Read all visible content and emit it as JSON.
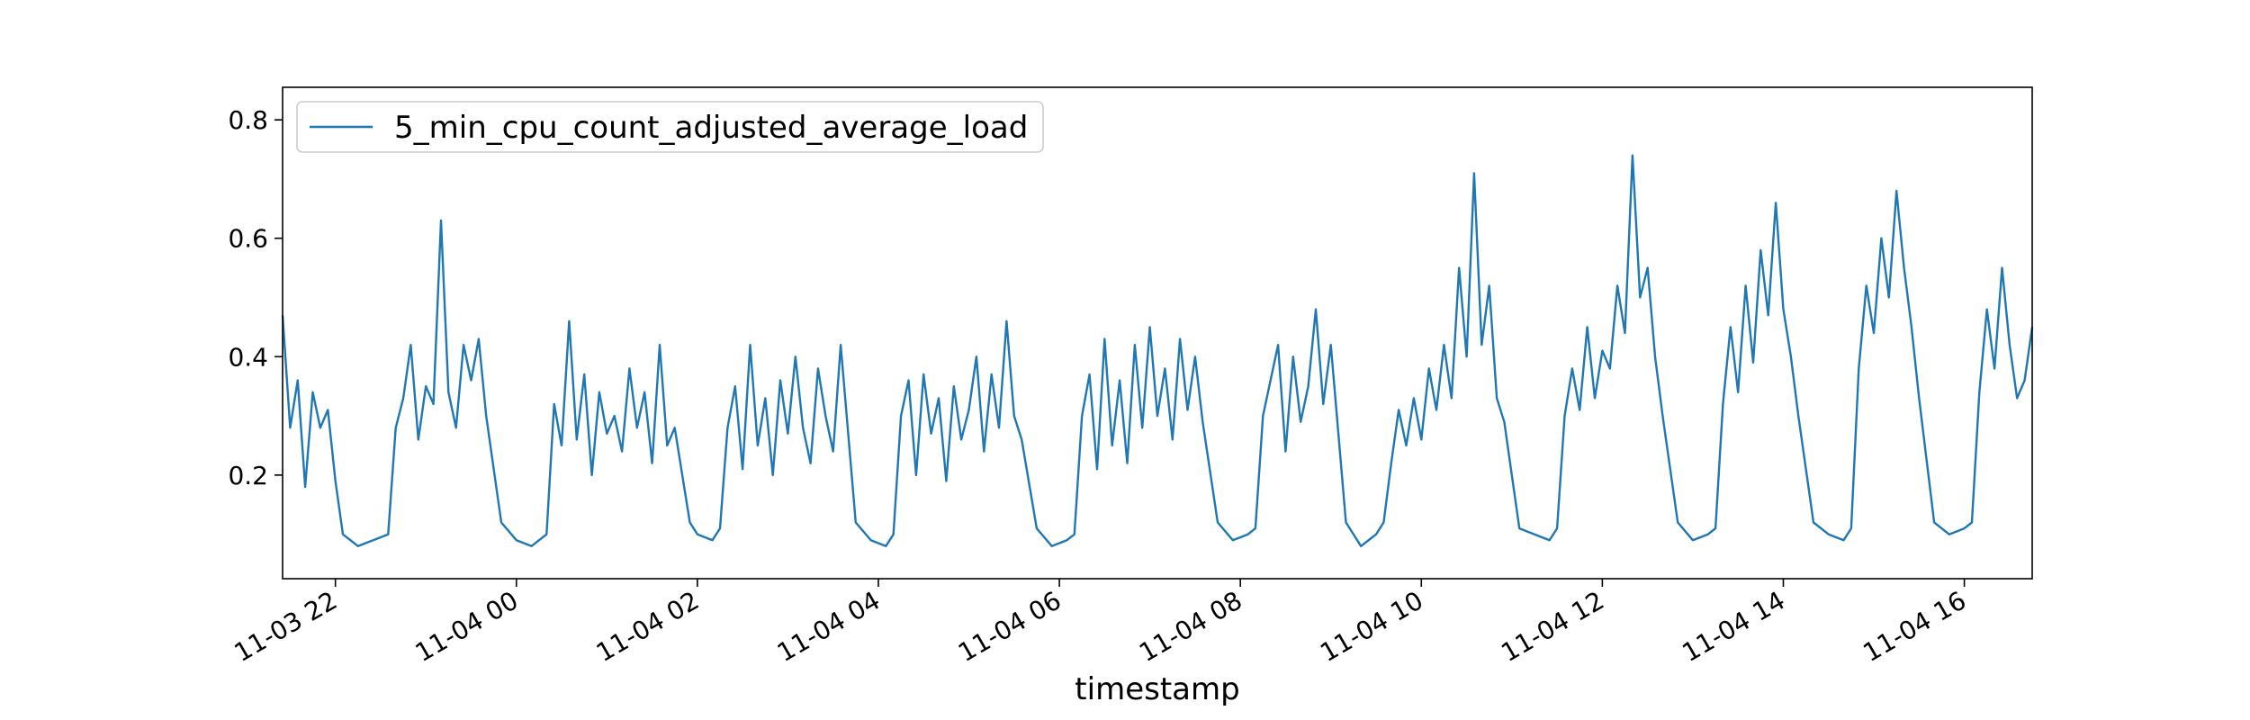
{
  "chart_data": {
    "type": "line",
    "title": "",
    "xlabel": "timestamp",
    "ylabel": "",
    "x_range": [
      "11-03 21:25",
      "11-04 16:45"
    ],
    "ylim": [
      0.025,
      0.855
    ],
    "yticks": [
      {
        "value": 0.2,
        "label": "0.2"
      },
      {
        "value": 0.4,
        "label": "0.4"
      },
      {
        "value": 0.6,
        "label": "0.6"
      },
      {
        "value": 0.8,
        "label": "0.8"
      }
    ],
    "xticks": [
      {
        "value": "11-03 22:00",
        "label": "11-03 22"
      },
      {
        "value": "11-04 00:00",
        "label": "11-04 00"
      },
      {
        "value": "11-04 02:00",
        "label": "11-04 02"
      },
      {
        "value": "11-04 04:00",
        "label": "11-04 04"
      },
      {
        "value": "11-04 06:00",
        "label": "11-04 06"
      },
      {
        "value": "11-04 08:00",
        "label": "11-04 08"
      },
      {
        "value": "11-04 10:00",
        "label": "11-04 10"
      },
      {
        "value": "11-04 12:00",
        "label": "11-04 12"
      },
      {
        "value": "11-04 14:00",
        "label": "11-04 14"
      },
      {
        "value": "11-04 16:00",
        "label": "11-04 16"
      }
    ],
    "grid": false,
    "legend": {
      "position": "top-left"
    },
    "series": [
      {
        "name": "5_min_cpu_count_adjusted_average_load",
        "color": "#1f77b4",
        "points": [
          [
            "11-03 21:25",
            0.47
          ],
          [
            "11-03 21:30",
            0.28
          ],
          [
            "11-03 21:35",
            0.36
          ],
          [
            "11-03 21:40",
            0.18
          ],
          [
            "11-03 21:45",
            0.34
          ],
          [
            "11-03 21:50",
            0.28
          ],
          [
            "11-03 21:55",
            0.31
          ],
          [
            "11-03 22:00",
            0.19
          ],
          [
            "11-03 22:05",
            0.1
          ],
          [
            "11-03 22:15",
            0.08
          ],
          [
            "11-03 22:25",
            0.09
          ],
          [
            "11-03 22:35",
            0.1
          ],
          [
            "11-03 22:40",
            0.28
          ],
          [
            "11-03 22:45",
            0.33
          ],
          [
            "11-03 22:50",
            0.42
          ],
          [
            "11-03 22:55",
            0.26
          ],
          [
            "11-03 23:00",
            0.35
          ],
          [
            "11-03 23:05",
            0.32
          ],
          [
            "11-03 23:10",
            0.63
          ],
          [
            "11-03 23:15",
            0.34
          ],
          [
            "11-03 23:20",
            0.28
          ],
          [
            "11-03 23:25",
            0.42
          ],
          [
            "11-03 23:30",
            0.36
          ],
          [
            "11-03 23:35",
            0.43
          ],
          [
            "11-03 23:40",
            0.3
          ],
          [
            "11-03 23:50",
            0.12
          ],
          [
            "11-04 00:00",
            0.09
          ],
          [
            "11-04 00:10",
            0.08
          ],
          [
            "11-04 00:20",
            0.1
          ],
          [
            "11-04 00:25",
            0.32
          ],
          [
            "11-04 00:30",
            0.25
          ],
          [
            "11-04 00:35",
            0.46
          ],
          [
            "11-04 00:40",
            0.26
          ],
          [
            "11-04 00:45",
            0.37
          ],
          [
            "11-04 00:50",
            0.2
          ],
          [
            "11-04 00:55",
            0.34
          ],
          [
            "11-04 01:00",
            0.27
          ],
          [
            "11-04 01:05",
            0.3
          ],
          [
            "11-04 01:10",
            0.24
          ],
          [
            "11-04 01:15",
            0.38
          ],
          [
            "11-04 01:20",
            0.28
          ],
          [
            "11-04 01:25",
            0.34
          ],
          [
            "11-04 01:30",
            0.22
          ],
          [
            "11-04 01:35",
            0.42
          ],
          [
            "11-04 01:40",
            0.25
          ],
          [
            "11-04 01:45",
            0.28
          ],
          [
            "11-04 01:55",
            0.12
          ],
          [
            "11-04 02:00",
            0.1
          ],
          [
            "11-04 02:10",
            0.09
          ],
          [
            "11-04 02:15",
            0.11
          ],
          [
            "11-04 02:20",
            0.28
          ],
          [
            "11-04 02:25",
            0.35
          ],
          [
            "11-04 02:30",
            0.21
          ],
          [
            "11-04 02:35",
            0.42
          ],
          [
            "11-04 02:40",
            0.25
          ],
          [
            "11-04 02:45",
            0.33
          ],
          [
            "11-04 02:50",
            0.2
          ],
          [
            "11-04 02:55",
            0.36
          ],
          [
            "11-04 03:00",
            0.27
          ],
          [
            "11-04 03:05",
            0.4
          ],
          [
            "11-04 03:10",
            0.28
          ],
          [
            "11-04 03:15",
            0.22
          ],
          [
            "11-04 03:20",
            0.38
          ],
          [
            "11-04 03:25",
            0.3
          ],
          [
            "11-04 03:30",
            0.24
          ],
          [
            "11-04 03:35",
            0.42
          ],
          [
            "11-04 03:45",
            0.12
          ],
          [
            "11-04 03:55",
            0.09
          ],
          [
            "11-04 04:05",
            0.08
          ],
          [
            "11-04 04:10",
            0.1
          ],
          [
            "11-04 04:15",
            0.3
          ],
          [
            "11-04 04:20",
            0.36
          ],
          [
            "11-04 04:25",
            0.2
          ],
          [
            "11-04 04:30",
            0.37
          ],
          [
            "11-04 04:35",
            0.27
          ],
          [
            "11-04 04:40",
            0.33
          ],
          [
            "11-04 04:45",
            0.19
          ],
          [
            "11-04 04:50",
            0.35
          ],
          [
            "11-04 04:55",
            0.26
          ],
          [
            "11-04 05:00",
            0.31
          ],
          [
            "11-04 05:05",
            0.4
          ],
          [
            "11-04 05:10",
            0.24
          ],
          [
            "11-04 05:15",
            0.37
          ],
          [
            "11-04 05:20",
            0.28
          ],
          [
            "11-04 05:25",
            0.46
          ],
          [
            "11-04 05:30",
            0.3
          ],
          [
            "11-04 05:35",
            0.26
          ],
          [
            "11-04 05:45",
            0.11
          ],
          [
            "11-04 05:55",
            0.08
          ],
          [
            "11-04 06:05",
            0.09
          ],
          [
            "11-04 06:10",
            0.1
          ],
          [
            "11-04 06:15",
            0.3
          ],
          [
            "11-04 06:20",
            0.37
          ],
          [
            "11-04 06:25",
            0.21
          ],
          [
            "11-04 06:30",
            0.43
          ],
          [
            "11-04 06:35",
            0.25
          ],
          [
            "11-04 06:40",
            0.36
          ],
          [
            "11-04 06:45",
            0.22
          ],
          [
            "11-04 06:50",
            0.42
          ],
          [
            "11-04 06:55",
            0.28
          ],
          [
            "11-04 07:00",
            0.45
          ],
          [
            "11-04 07:05",
            0.3
          ],
          [
            "11-04 07:10",
            0.38
          ],
          [
            "11-04 07:15",
            0.26
          ],
          [
            "11-04 07:20",
            0.43
          ],
          [
            "11-04 07:25",
            0.31
          ],
          [
            "11-04 07:30",
            0.4
          ],
          [
            "11-04 07:35",
            0.29
          ],
          [
            "11-04 07:45",
            0.12
          ],
          [
            "11-04 07:55",
            0.09
          ],
          [
            "11-04 08:05",
            0.1
          ],
          [
            "11-04 08:10",
            0.11
          ],
          [
            "11-04 08:15",
            0.3
          ],
          [
            "11-04 08:20",
            0.36
          ],
          [
            "11-04 08:25",
            0.42
          ],
          [
            "11-04 08:30",
            0.24
          ],
          [
            "11-04 08:35",
            0.4
          ],
          [
            "11-04 08:40",
            0.29
          ],
          [
            "11-04 08:45",
            0.35
          ],
          [
            "11-04 08:50",
            0.48
          ],
          [
            "11-04 08:55",
            0.32
          ],
          [
            "11-04 09:00",
            0.42
          ],
          [
            "11-04 09:10",
            0.12
          ],
          [
            "11-04 09:20",
            0.08
          ],
          [
            "11-04 09:30",
            0.1
          ],
          [
            "11-04 09:35",
            0.12
          ],
          [
            "11-04 09:40",
            0.22
          ],
          [
            "11-04 09:45",
            0.31
          ],
          [
            "11-04 09:50",
            0.25
          ],
          [
            "11-04 09:55",
            0.33
          ],
          [
            "11-04 10:00",
            0.26
          ],
          [
            "11-04 10:05",
            0.38
          ],
          [
            "11-04 10:10",
            0.31
          ],
          [
            "11-04 10:15",
            0.42
          ],
          [
            "11-04 10:20",
            0.33
          ],
          [
            "11-04 10:25",
            0.55
          ],
          [
            "11-04 10:30",
            0.4
          ],
          [
            "11-04 10:35",
            0.71
          ],
          [
            "11-04 10:40",
            0.42
          ],
          [
            "11-04 10:45",
            0.52
          ],
          [
            "11-04 10:50",
            0.33
          ],
          [
            "11-04 10:55",
            0.29
          ],
          [
            "11-04 11:05",
            0.11
          ],
          [
            "11-04 11:15",
            0.1
          ],
          [
            "11-04 11:25",
            0.09
          ],
          [
            "11-04 11:30",
            0.11
          ],
          [
            "11-04 11:35",
            0.3
          ],
          [
            "11-04 11:40",
            0.38
          ],
          [
            "11-04 11:45",
            0.31
          ],
          [
            "11-04 11:50",
            0.45
          ],
          [
            "11-04 11:55",
            0.33
          ],
          [
            "11-04 12:00",
            0.41
          ],
          [
            "11-04 12:05",
            0.38
          ],
          [
            "11-04 12:10",
            0.52
          ],
          [
            "11-04 12:15",
            0.44
          ],
          [
            "11-04 12:20",
            0.74
          ],
          [
            "11-04 12:25",
            0.5
          ],
          [
            "11-04 12:30",
            0.55
          ],
          [
            "11-04 12:35",
            0.4
          ],
          [
            "11-04 12:40",
            0.3
          ],
          [
            "11-04 12:50",
            0.12
          ],
          [
            "11-04 13:00",
            0.09
          ],
          [
            "11-04 13:10",
            0.1
          ],
          [
            "11-04 13:15",
            0.11
          ],
          [
            "11-04 13:20",
            0.32
          ],
          [
            "11-04 13:25",
            0.45
          ],
          [
            "11-04 13:30",
            0.34
          ],
          [
            "11-04 13:35",
            0.52
          ],
          [
            "11-04 13:40",
            0.39
          ],
          [
            "11-04 13:45",
            0.58
          ],
          [
            "11-04 13:50",
            0.47
          ],
          [
            "11-04 13:55",
            0.66
          ],
          [
            "11-04 14:00",
            0.48
          ],
          [
            "11-04 14:05",
            0.4
          ],
          [
            "11-04 14:10",
            0.3
          ],
          [
            "11-04 14:20",
            0.12
          ],
          [
            "11-04 14:30",
            0.1
          ],
          [
            "11-04 14:40",
            0.09
          ],
          [
            "11-04 14:45",
            0.11
          ],
          [
            "11-04 14:50",
            0.38
          ],
          [
            "11-04 14:55",
            0.52
          ],
          [
            "11-04 15:00",
            0.44
          ],
          [
            "11-04 15:05",
            0.6
          ],
          [
            "11-04 15:10",
            0.5
          ],
          [
            "11-04 15:15",
            0.68
          ],
          [
            "11-04 15:20",
            0.55
          ],
          [
            "11-04 15:25",
            0.45
          ],
          [
            "11-04 15:30",
            0.33
          ],
          [
            "11-04 15:40",
            0.12
          ],
          [
            "11-04 15:50",
            0.1
          ],
          [
            "11-04 16:00",
            0.11
          ],
          [
            "11-04 16:05",
            0.12
          ],
          [
            "11-04 16:10",
            0.34
          ],
          [
            "11-04 16:15",
            0.48
          ],
          [
            "11-04 16:20",
            0.38
          ],
          [
            "11-04 16:25",
            0.55
          ],
          [
            "11-04 16:30",
            0.42
          ],
          [
            "11-04 16:35",
            0.33
          ],
          [
            "11-04 16:40",
            0.36
          ],
          [
            "11-04 16:45",
            0.45
          ]
        ]
      }
    ]
  }
}
